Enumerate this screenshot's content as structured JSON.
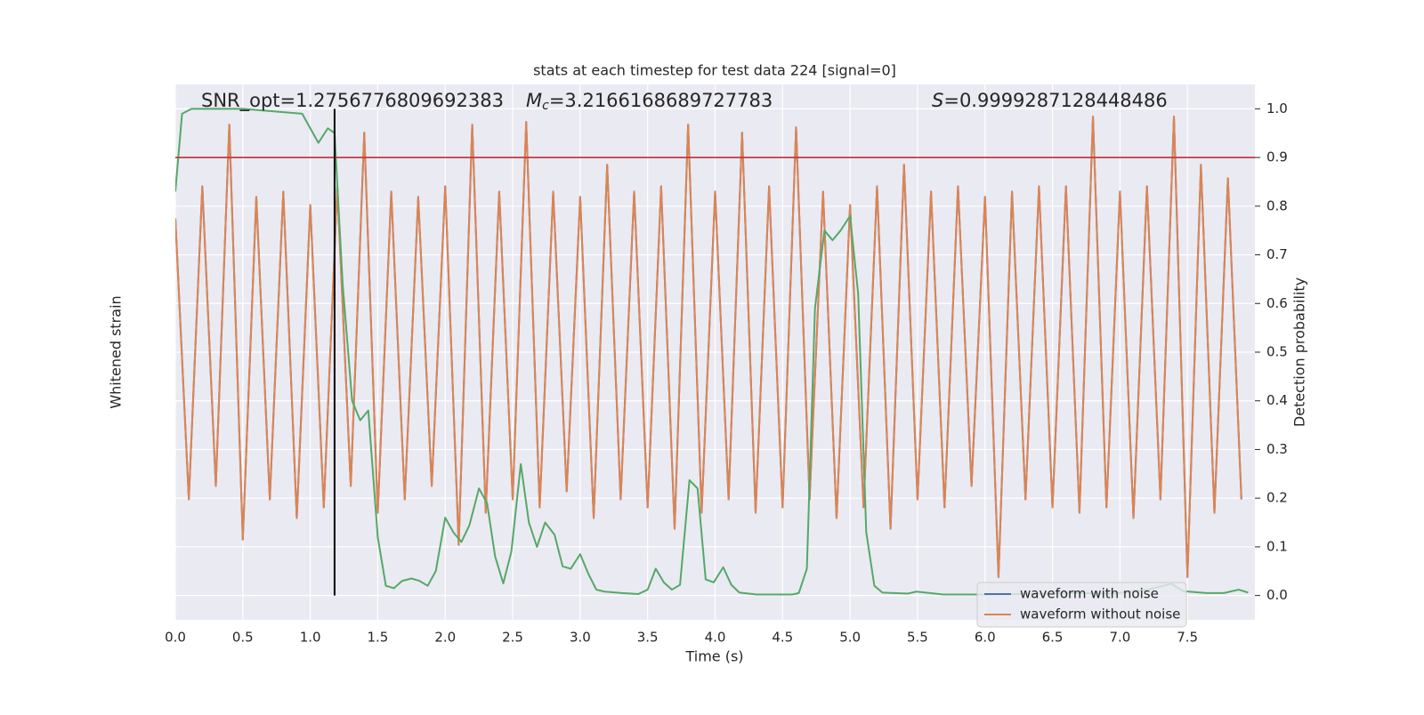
{
  "chart_data": {
    "type": "line",
    "title": "stats at each timestep for test data 224 [signal=0]",
    "xlabel": "Time (s)",
    "ylabel": "Whitened strain",
    "y2label": "Detection probability",
    "xlim": [
      0,
      8
    ],
    "xticks": [
      {
        "value": 0,
        "label": "0.0"
      },
      0.5,
      {
        "value": 1,
        "label": "1.0"
      },
      1.5,
      {
        "value": 2,
        "label": "2.0"
      },
      2.5,
      {
        "value": 3,
        "label": "3.0"
      },
      3.5,
      {
        "value": 4,
        "label": "4.0"
      },
      4.5,
      {
        "value": 5,
        "label": "5.0"
      },
      5.5,
      {
        "value": 6,
        "label": "6.0"
      },
      6.5,
      {
        "value": 7,
        "label": "7.0"
      },
      7.5
    ],
    "ylim": [
      -1,
      1
    ],
    "y2lim": [
      -0.05,
      1.05
    ],
    "y2ticks": [
      {
        "value": 0,
        "label": "0.0"
      },
      0.1,
      0.2,
      0.3,
      0.4,
      0.5,
      0.6,
      0.7,
      0.8,
      0.9,
      {
        "value": 1,
        "label": "1.0"
      }
    ],
    "grid": true,
    "legend": "lower right",
    "annotations": [
      {
        "text": "SNR_opt=1.2756776809692383"
      },
      {
        "symbol": "M",
        "subscript": "c",
        "text": "=3.2166168689727783"
      },
      {
        "symbol": "S",
        "text": "=0.9999287128448486"
      }
    ],
    "hlines": [
      {
        "y": 0.9,
        "color": "#c03d3e",
        "axis": "y2"
      }
    ],
    "vlines": [
      {
        "x": 1.18,
        "ymin": 0,
        "ymax": 1,
        "color": "#000000",
        "axis": "y2"
      }
    ],
    "series": [
      {
        "name": "waveform with noise",
        "color": "#4c72b0",
        "x": [
          0.0,
          0.1,
          0.2,
          0.3,
          0.4,
          0.5,
          0.6,
          0.7,
          0.8,
          0.9,
          1.0,
          1.1,
          1.2,
          1.3,
          1.4,
          1.5,
          1.6,
          1.7,
          1.8,
          1.9,
          2.0,
          2.1,
          2.2,
          2.3,
          2.4,
          2.5,
          2.6,
          2.7,
          2.8,
          2.9,
          3.0,
          3.1,
          3.2,
          3.3,
          3.4,
          3.5,
          3.6,
          3.7,
          3.8,
          3.9,
          4.0,
          4.1,
          4.2,
          4.3,
          4.4,
          4.5,
          4.6,
          4.7,
          4.8,
          4.9,
          5.0,
          5.1,
          5.2,
          5.3,
          5.4,
          5.5,
          5.6,
          5.7,
          5.8,
          5.9,
          6.0,
          6.1,
          6.2,
          6.3,
          6.4,
          6.5,
          6.6,
          6.7,
          6.8,
          6.9,
          7.0,
          7.1,
          7.2,
          7.3,
          7.4,
          7.5,
          7.6,
          7.7,
          7.8,
          7.9
        ],
        "values": [
          0.5,
          -0.55,
          0.62,
          -0.5,
          0.85,
          -0.7,
          0.58,
          -0.55,
          0.6,
          -0.62,
          0.55,
          -0.58,
          0.62,
          -0.5,
          0.82,
          -0.6,
          0.6,
          -0.55,
          0.58,
          -0.5,
          0.62,
          -0.72,
          0.85,
          -0.6,
          0.6,
          -0.55,
          0.86,
          -0.58,
          0.6,
          -0.52,
          0.58,
          -0.62,
          0.7,
          -0.55,
          0.6,
          -0.58,
          0.62,
          -0.66,
          0.85,
          -0.6,
          0.6,
          -0.55,
          0.82,
          -0.6,
          0.62,
          -0.58,
          0.84,
          -0.55,
          0.6,
          -0.62,
          0.55,
          -0.58,
          0.62,
          -0.66,
          0.7,
          -0.55,
          0.6,
          -0.58,
          0.62,
          -0.5,
          0.58,
          -0.84,
          0.6,
          -0.55,
          0.62,
          -0.58,
          0.62,
          -0.6,
          0.88,
          -0.58,
          0.6,
          -0.62,
          0.62,
          -0.55,
          0.88,
          -0.84,
          0.7,
          -0.6,
          0.65,
          -0.55
        ]
      },
      {
        "name": "waveform without noise",
        "color": "#dd8452",
        "x": [
          0.0,
          0.1,
          0.2,
          0.3,
          0.4,
          0.5,
          0.6,
          0.7,
          0.8,
          0.9,
          1.0,
          1.1,
          1.2,
          1.3,
          1.4,
          1.5,
          1.6,
          1.7,
          1.8,
          1.9,
          2.0,
          2.1,
          2.2,
          2.3,
          2.4,
          2.5,
          2.6,
          2.7,
          2.8,
          2.9,
          3.0,
          3.1,
          3.2,
          3.3,
          3.4,
          3.5,
          3.6,
          3.7,
          3.8,
          3.9,
          4.0,
          4.1,
          4.2,
          4.3,
          4.4,
          4.5,
          4.6,
          4.7,
          4.8,
          4.9,
          5.0,
          5.1,
          5.2,
          5.3,
          5.4,
          5.5,
          5.6,
          5.7,
          5.8,
          5.9,
          6.0,
          6.1,
          6.2,
          6.3,
          6.4,
          6.5,
          6.6,
          6.7,
          6.8,
          6.9,
          7.0,
          7.1,
          7.2,
          7.3,
          7.4,
          7.5,
          7.6,
          7.7,
          7.8,
          7.9
        ],
        "values": [
          0.5,
          -0.55,
          0.62,
          -0.5,
          0.85,
          -0.7,
          0.58,
          -0.55,
          0.6,
          -0.62,
          0.55,
          -0.58,
          0.62,
          -0.5,
          0.82,
          -0.6,
          0.6,
          -0.55,
          0.58,
          -0.5,
          0.62,
          -0.72,
          0.85,
          -0.6,
          0.6,
          -0.55,
          0.86,
          -0.58,
          0.6,
          -0.52,
          0.58,
          -0.62,
          0.7,
          -0.55,
          0.6,
          -0.58,
          0.62,
          -0.66,
          0.85,
          -0.6,
          0.6,
          -0.55,
          0.82,
          -0.6,
          0.62,
          -0.58,
          0.84,
          -0.55,
          0.6,
          -0.62,
          0.55,
          -0.58,
          0.62,
          -0.66,
          0.7,
          -0.55,
          0.6,
          -0.58,
          0.62,
          -0.5,
          0.58,
          -0.84,
          0.6,
          -0.55,
          0.62,
          -0.58,
          0.62,
          -0.6,
          0.88,
          -0.58,
          0.6,
          -0.62,
          0.62,
          -0.55,
          0.88,
          -0.84,
          0.7,
          -0.6,
          0.65,
          -0.55
        ]
      },
      {
        "color": "#55a868",
        "axis": "y2",
        "x": [
          0,
          0.05,
          0.12,
          0.5,
          0.94,
          1.06,
          1.13,
          1.18,
          1.24,
          1.31,
          1.37,
          1.43,
          1.5,
          1.56,
          1.62,
          1.68,
          1.75,
          1.81,
          1.87,
          1.93,
          2.0,
          2.06,
          2.12,
          2.18,
          2.25,
          2.31,
          2.37,
          2.43,
          2.49,
          2.56,
          2.62,
          2.68,
          2.74,
          2.81,
          2.87,
          2.93,
          3.0,
          3.06,
          3.12,
          3.18,
          3.31,
          3.43,
          3.5,
          3.56,
          3.62,
          3.68,
          3.74,
          3.81,
          3.87,
          3.93,
          3.99,
          4.06,
          4.12,
          4.18,
          4.31,
          4.57,
          4.62,
          4.68,
          4.74,
          4.81,
          4.87,
          4.93,
          5.0,
          5.06,
          5.12,
          5.18,
          5.24,
          5.43,
          5.49,
          5.56,
          5.69,
          5.96,
          6.29,
          6.62,
          6.95,
          7.21,
          7.38,
          7.47,
          7.64,
          7.77,
          7.88,
          7.95
        ],
        "values": [
          0.83,
          0.99,
          1.0,
          1.0,
          0.99,
          0.93,
          0.96,
          0.95,
          0.64,
          0.4,
          0.36,
          0.38,
          0.12,
          0.02,
          0.015,
          0.03,
          0.035,
          0.03,
          0.02,
          0.05,
          0.16,
          0.13,
          0.11,
          0.145,
          0.22,
          0.19,
          0.08,
          0.025,
          0.09,
          0.27,
          0.15,
          0.1,
          0.15,
          0.125,
          0.06,
          0.055,
          0.085,
          0.045,
          0.012,
          0.008,
          0.005,
          0.003,
          0.012,
          0.055,
          0.027,
          0.012,
          0.022,
          0.237,
          0.22,
          0.033,
          0.027,
          0.058,
          0.022,
          0.006,
          0.002,
          0.002,
          0.005,
          0.055,
          0.59,
          0.75,
          0.73,
          0.75,
          0.78,
          0.62,
          0.13,
          0.02,
          0.006,
          0.004,
          0.008,
          0.006,
          0.002,
          0.002,
          0.003,
          0.005,
          0.004,
          0.012,
          0.024,
          0.009,
          0.005,
          0.005,
          0.012,
          0.006
        ]
      }
    ]
  }
}
